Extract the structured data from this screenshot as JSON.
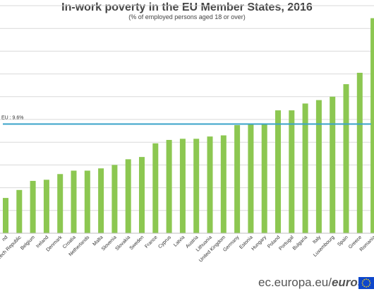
{
  "chart_data": {
    "type": "bar",
    "title": "In-work poverty in the EU Member States, 2016",
    "subtitle": "(% of employed persons aged 18 or over)",
    "categories": [
      "Finland",
      "Czech Republic",
      "Belgium",
      "Ireland",
      "Denmark",
      "Croatia",
      "Netherlands",
      "Malta",
      "Slovenia",
      "Slovakia",
      "Sweden",
      "France",
      "Cyprus",
      "Latvia",
      "Austria",
      "Lithuania",
      "United Kingdom",
      "Germany",
      "Estonia",
      "Hungary",
      "Poland",
      "Portugal",
      "Bulgaria",
      "Italy",
      "Luxembourg",
      "Spain",
      "Greece",
      "Romania"
    ],
    "visible_labels": [
      "nd",
      "Czech Republic",
      "Belgium",
      "Ireland",
      "Denmark",
      "Croatia",
      "Netherlands",
      "Malta",
      "Slovenia",
      "Slovakia",
      "Sweden",
      "France",
      "Cyprus",
      "Latvia",
      "Austria",
      "Lithuania",
      "United Kingdom",
      "Germany",
      "Estonia",
      "Hungary",
      "Poland",
      "Portugal",
      "Bulgaria",
      "Italy",
      "Luxembourg",
      "Spain",
      "Greece",
      "Romania"
    ],
    "values": [
      3.1,
      3.8,
      4.6,
      4.7,
      5.2,
      5.5,
      5.5,
      5.7,
      6.0,
      6.5,
      6.7,
      7.9,
      8.2,
      8.3,
      8.3,
      8.5,
      8.6,
      9.5,
      9.6,
      9.6,
      10.8,
      10.8,
      11.4,
      11.7,
      12.0,
      13.1,
      14.1,
      18.9
    ],
    "reference_line": {
      "label": "EU : 9.6%",
      "value": 9.6,
      "color": "#3aa3c9"
    },
    "ylim": [
      0,
      20
    ],
    "grid": true,
    "xlabel": "",
    "ylabel": "",
    "bar_color": "#8cc751",
    "grid_color": "#d9d9d9"
  },
  "footer": {
    "site": "ec.europa.eu/",
    "brand": "eurostat"
  },
  "logo_icon": "eu-flag-icon"
}
